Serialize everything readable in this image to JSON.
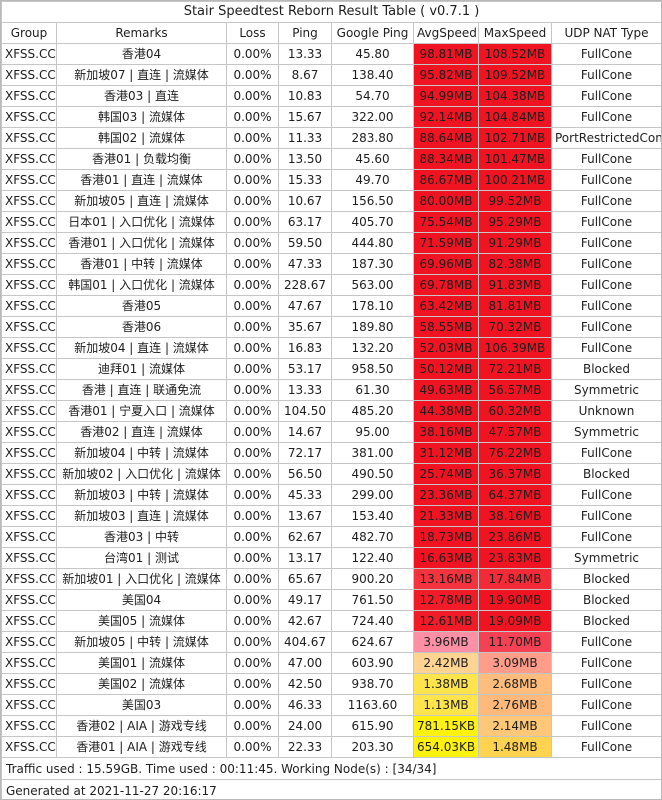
{
  "title": "Stair Speedtest Reborn Result Table ( v0.7.1 )",
  "columns": [
    "Group",
    "Remarks",
    "Loss",
    "Ping",
    "Google Ping",
    "AvgSpeed",
    "MaxSpeed",
    "UDP NAT Type"
  ],
  "colors": {
    "red": "#f01322",
    "red_soft": "#f32b38",
    "red_light": "#f54154",
    "pink": "#ff8fa4",
    "salmon": "#ff9d8a",
    "peach": "#ffd493",
    "peach_deep": "#ffbd7d",
    "orange_light": "#ffc878",
    "yellow_orange": "#ffd24f",
    "yellow": "#ffe44e",
    "yellow_bright": "#fff20e"
  },
  "rows": [
    {
      "group": "XFSS.CC",
      "remarks": "香港04",
      "loss": "0.00%",
      "ping": "13.33",
      "google_ping": "45.80",
      "avg_speed": "98.81MB",
      "max_speed": "108.52MB",
      "nat": "FullCone",
      "avg_color": "#f01322",
      "max_color": "#f01322"
    },
    {
      "group": "XFSS.CC",
      "remarks": "新加坡07 | 直连 | 流媒体",
      "loss": "0.00%",
      "ping": "8.67",
      "google_ping": "138.40",
      "avg_speed": "95.82MB",
      "max_speed": "109.52MB",
      "nat": "FullCone",
      "avg_color": "#f01322",
      "max_color": "#f01322"
    },
    {
      "group": "XFSS.CC",
      "remarks": "香港03 | 直连",
      "loss": "0.00%",
      "ping": "10.83",
      "google_ping": "54.70",
      "avg_speed": "94.99MB",
      "max_speed": "104.38MB",
      "nat": "FullCone",
      "avg_color": "#f01322",
      "max_color": "#f01322"
    },
    {
      "group": "XFSS.CC",
      "remarks": "韩国03 | 流媒体",
      "loss": "0.00%",
      "ping": "15.67",
      "google_ping": "322.00",
      "avg_speed": "92.14MB",
      "max_speed": "104.84MB",
      "nat": "FullCone",
      "avg_color": "#f01322",
      "max_color": "#f01322"
    },
    {
      "group": "XFSS.CC",
      "remarks": "韩国02 | 流媒体",
      "loss": "0.00%",
      "ping": "11.33",
      "google_ping": "283.80",
      "avg_speed": "88.64MB",
      "max_speed": "102.71MB",
      "nat": "PortRestrictedCone",
      "avg_color": "#f01322",
      "max_color": "#f01322"
    },
    {
      "group": "XFSS.CC",
      "remarks": "香港01 | 负载均衡",
      "loss": "0.00%",
      "ping": "13.50",
      "google_ping": "45.60",
      "avg_speed": "88.34MB",
      "max_speed": "101.47MB",
      "nat": "FullCone",
      "avg_color": "#f01322",
      "max_color": "#f01322"
    },
    {
      "group": "XFSS.CC",
      "remarks": "香港01 | 直连 | 流媒体",
      "loss": "0.00%",
      "ping": "15.33",
      "google_ping": "49.70",
      "avg_speed": "86.67MB",
      "max_speed": "100.21MB",
      "nat": "FullCone",
      "avg_color": "#f01322",
      "max_color": "#f01322"
    },
    {
      "group": "XFSS.CC",
      "remarks": "新加坡05 | 直连 | 流媒体",
      "loss": "0.00%",
      "ping": "10.67",
      "google_ping": "156.50",
      "avg_speed": "80.00MB",
      "max_speed": "99.52MB",
      "nat": "FullCone",
      "avg_color": "#f01322",
      "max_color": "#f01322"
    },
    {
      "group": "XFSS.CC",
      "remarks": "日本01 | 入口优化 | 流媒体",
      "loss": "0.00%",
      "ping": "63.17",
      "google_ping": "405.70",
      "avg_speed": "75.54MB",
      "max_speed": "95.29MB",
      "nat": "FullCone",
      "avg_color": "#f01322",
      "max_color": "#f01322"
    },
    {
      "group": "XFSS.CC",
      "remarks": "香港01 | 入口优化 | 流媒体",
      "loss": "0.00%",
      "ping": "59.50",
      "google_ping": "444.80",
      "avg_speed": "71.59MB",
      "max_speed": "91.29MB",
      "nat": "FullCone",
      "avg_color": "#f01322",
      "max_color": "#f01322"
    },
    {
      "group": "XFSS.CC",
      "remarks": "香港01 | 中转 | 流媒体",
      "loss": "0.00%",
      "ping": "47.33",
      "google_ping": "187.30",
      "avg_speed": "69.96MB",
      "max_speed": "82.38MB",
      "nat": "FullCone",
      "avg_color": "#f01322",
      "max_color": "#f01322"
    },
    {
      "group": "XFSS.CC",
      "remarks": "韩国01 | 入口优化 | 流媒体",
      "loss": "0.00%",
      "ping": "228.67",
      "google_ping": "563.00",
      "avg_speed": "69.78MB",
      "max_speed": "91.83MB",
      "nat": "FullCone",
      "avg_color": "#f01322",
      "max_color": "#f01322"
    },
    {
      "group": "XFSS.CC",
      "remarks": "香港05",
      "loss": "0.00%",
      "ping": "47.67",
      "google_ping": "178.10",
      "avg_speed": "63.42MB",
      "max_speed": "81.81MB",
      "nat": "FullCone",
      "avg_color": "#f01322",
      "max_color": "#f01322"
    },
    {
      "group": "XFSS.CC",
      "remarks": "香港06",
      "loss": "0.00%",
      "ping": "35.67",
      "google_ping": "189.80",
      "avg_speed": "58.55MB",
      "max_speed": "70.32MB",
      "nat": "FullCone",
      "avg_color": "#f01322",
      "max_color": "#f01322"
    },
    {
      "group": "XFSS.CC",
      "remarks": "新加坡04 | 直连 | 流媒体",
      "loss": "0.00%",
      "ping": "16.83",
      "google_ping": "132.20",
      "avg_speed": "52.03MB",
      "max_speed": "106.39MB",
      "nat": "FullCone",
      "avg_color": "#f01322",
      "max_color": "#f01322"
    },
    {
      "group": "XFSS.CC",
      "remarks": "迪拜01 | 流媒体",
      "loss": "0.00%",
      "ping": "53.17",
      "google_ping": "958.50",
      "avg_speed": "50.12MB",
      "max_speed": "72.21MB",
      "nat": "Blocked",
      "avg_color": "#f01322",
      "max_color": "#f01322"
    },
    {
      "group": "XFSS.CC",
      "remarks": "香港 | 直连 | 联通免流",
      "loss": "0.00%",
      "ping": "13.33",
      "google_ping": "61.30",
      "avg_speed": "49.63MB",
      "max_speed": "56.57MB",
      "nat": "Symmetric",
      "avg_color": "#f01322",
      "max_color": "#f01322"
    },
    {
      "group": "XFSS.CC",
      "remarks": "香港01 | 宁夏入口 | 流媒体",
      "loss": "0.00%",
      "ping": "104.50",
      "google_ping": "485.20",
      "avg_speed": "44.38MB",
      "max_speed": "60.32MB",
      "nat": "Unknown",
      "avg_color": "#f01322",
      "max_color": "#f01322"
    },
    {
      "group": "XFSS.CC",
      "remarks": "香港02 | 直连 | 流媒体",
      "loss": "0.00%",
      "ping": "14.67",
      "google_ping": "95.00",
      "avg_speed": "38.16MB",
      "max_speed": "47.57MB",
      "nat": "Symmetric",
      "avg_color": "#f01322",
      "max_color": "#f01322"
    },
    {
      "group": "XFSS.CC",
      "remarks": "新加坡04 | 中转 | 流媒体",
      "loss": "0.00%",
      "ping": "72.17",
      "google_ping": "381.00",
      "avg_speed": "31.12MB",
      "max_speed": "76.22MB",
      "nat": "FullCone",
      "avg_color": "#f01322",
      "max_color": "#f01322"
    },
    {
      "group": "XFSS.CC",
      "remarks": "新加坡02 | 入口优化 | 流媒体",
      "loss": "0.00%",
      "ping": "56.50",
      "google_ping": "490.50",
      "avg_speed": "25.74MB",
      "max_speed": "36.37MB",
      "nat": "Blocked",
      "avg_color": "#f01322",
      "max_color": "#f01322"
    },
    {
      "group": "XFSS.CC",
      "remarks": "新加坡03 | 中转 | 流媒体",
      "loss": "0.00%",
      "ping": "45.33",
      "google_ping": "299.00",
      "avg_speed": "23.36MB",
      "max_speed": "64.37MB",
      "nat": "FullCone",
      "avg_color": "#f01322",
      "max_color": "#f01322"
    },
    {
      "group": "XFSS.CC",
      "remarks": "新加坡03 | 直连 | 流媒体",
      "loss": "0.00%",
      "ping": "13.67",
      "google_ping": "153.40",
      "avg_speed": "21.33MB",
      "max_speed": "38.16MB",
      "nat": "FullCone",
      "avg_color": "#f01322",
      "max_color": "#f01322"
    },
    {
      "group": "XFSS.CC",
      "remarks": "香港03 | 中转",
      "loss": "0.00%",
      "ping": "62.67",
      "google_ping": "482.70",
      "avg_speed": "18.73MB",
      "max_speed": "23.86MB",
      "nat": "FullCone",
      "avg_color": "#f01322",
      "max_color": "#f01322"
    },
    {
      "group": "XFSS.CC",
      "remarks": "台湾01 | 测试",
      "loss": "0.00%",
      "ping": "13.17",
      "google_ping": "122.40",
      "avg_speed": "16.63MB",
      "max_speed": "23.83MB",
      "nat": "Symmetric",
      "avg_color": "#f01322",
      "max_color": "#f01322"
    },
    {
      "group": "XFSS.CC",
      "remarks": "新加坡01 | 入口优化 | 流媒体",
      "loss": "0.00%",
      "ping": "65.67",
      "google_ping": "900.20",
      "avg_speed": "13.16MB",
      "max_speed": "17.84MB",
      "nat": "Blocked",
      "avg_color": "#f4333f",
      "max_color": "#f32b38"
    },
    {
      "group": "XFSS.CC",
      "remarks": "美国04",
      "loss": "0.00%",
      "ping": "49.17",
      "google_ping": "761.50",
      "avg_speed": "12.78MB",
      "max_speed": "19.90MB",
      "nat": "Blocked",
      "avg_color": "#f21b28",
      "max_color": "#f01322"
    },
    {
      "group": "XFSS.CC",
      "remarks": "美国05 | 流媒体",
      "loss": "0.00%",
      "ping": "42.67",
      "google_ping": "724.40",
      "avg_speed": "12.61MB",
      "max_speed": "19.09MB",
      "nat": "Blocked",
      "avg_color": "#f21b28",
      "max_color": "#f01322"
    },
    {
      "group": "XFSS.CC",
      "remarks": "新加坡05 | 中转 | 流媒体",
      "loss": "0.00%",
      "ping": "404.67",
      "google_ping": "624.67",
      "avg_speed": "3.96MB",
      "max_speed": "11.70MB",
      "nat": "FullCone",
      "avg_color": "#ff8fa4",
      "max_color": "#f54154"
    },
    {
      "group": "XFSS.CC",
      "remarks": "美国01 | 流媒体",
      "loss": "0.00%",
      "ping": "47.00",
      "google_ping": "603.90",
      "avg_speed": "2.42MB",
      "max_speed": "3.09MB",
      "nat": "FullCone",
      "avg_color": "#ffd493",
      "max_color": "#ff9d8a"
    },
    {
      "group": "XFSS.CC",
      "remarks": "美国02 | 流媒体",
      "loss": "0.00%",
      "ping": "42.50",
      "google_ping": "938.70",
      "avg_speed": "1.38MB",
      "max_speed": "2.68MB",
      "nat": "FullCone",
      "avg_color": "#ffe44e",
      "max_color": "#ffbd7d"
    },
    {
      "group": "XFSS.CC",
      "remarks": "美国03",
      "loss": "0.00%",
      "ping": "46.33",
      "google_ping": "1163.60",
      "avg_speed": "1.13MB",
      "max_speed": "2.76MB",
      "nat": "FullCone",
      "avg_color": "#ffe44e",
      "max_color": "#ffb97b"
    },
    {
      "group": "XFSS.CC",
      "remarks": "香港02 | AIA | 游戏专线",
      "loss": "0.00%",
      "ping": "24.00",
      "google_ping": "615.90",
      "avg_speed": "781.15KB",
      "max_speed": "2.14MB",
      "nat": "FullCone",
      "avg_color": "#fff20e",
      "max_color": "#ffc878"
    },
    {
      "group": "XFSS.CC",
      "remarks": "香港01 | AIA | 游戏专线",
      "loss": "0.00%",
      "ping": "22.33",
      "google_ping": "203.30",
      "avg_speed": "654.03KB",
      "max_speed": "1.48MB",
      "nat": "FullCone",
      "avg_color": "#fff20e",
      "max_color": "#ffd24f"
    }
  ],
  "footer": {
    "summary": "Traffic used : 15.59GB. Time used : 00:11:45. Working Node(s) : [34/34]",
    "generated": "Generated at 2021-11-27 20:16:17"
  }
}
